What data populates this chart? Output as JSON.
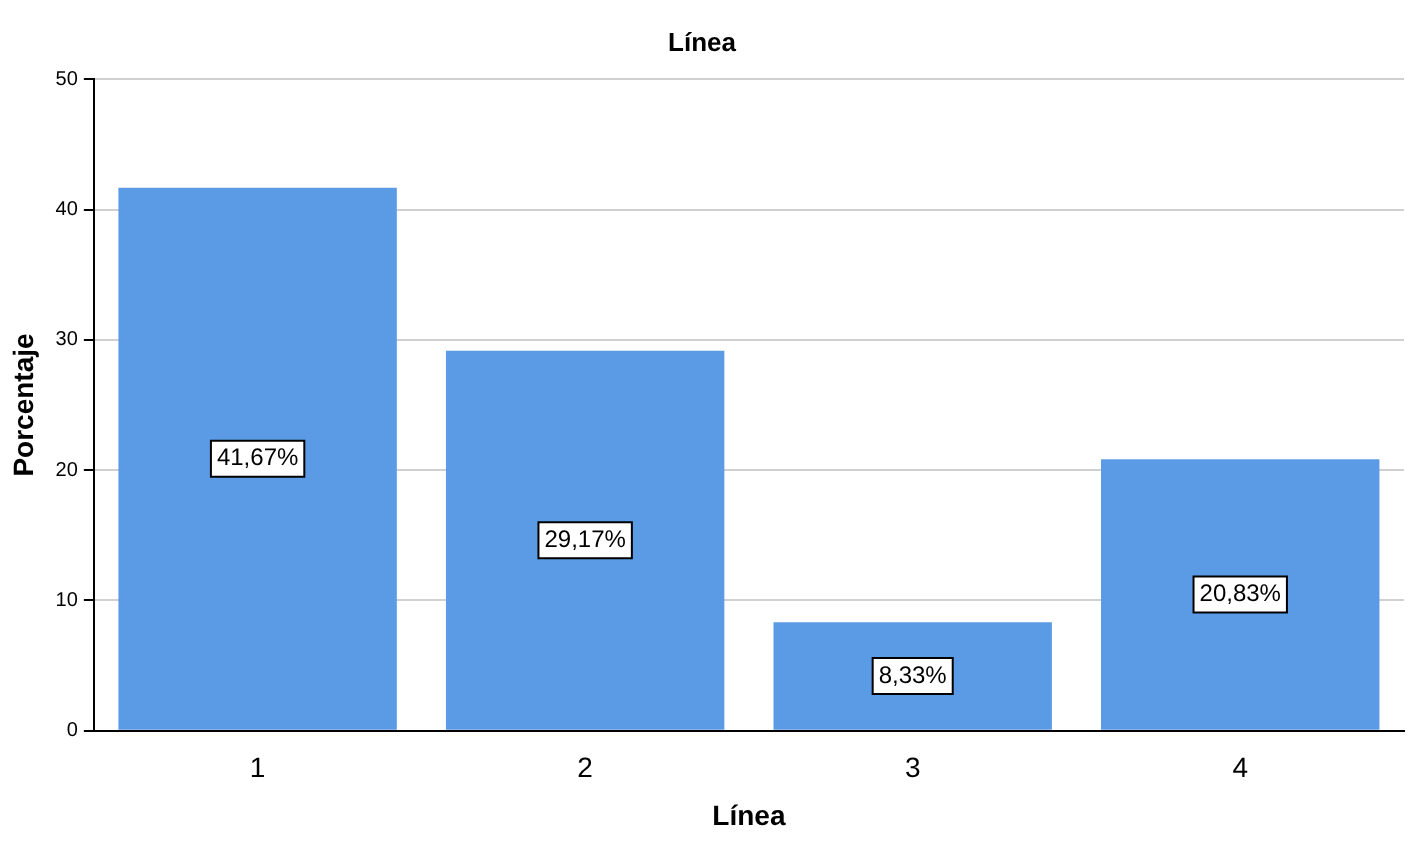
{
  "chart_data": {
    "type": "bar",
    "title": "Línea",
    "xlabel": "Línea",
    "ylabel": "Porcentaje",
    "categories": [
      "1",
      "2",
      "3",
      "4"
    ],
    "values": [
      41.67,
      29.17,
      8.33,
      20.83
    ],
    "value_labels": [
      "41,67%",
      "29,17%",
      "8,33%",
      "20,83%"
    ],
    "color": "#5b9be6",
    "ylim": [
      0,
      50
    ],
    "yticks": [
      0,
      10,
      20,
      30,
      40,
      50
    ],
    "grid": "y",
    "legend": false
  }
}
